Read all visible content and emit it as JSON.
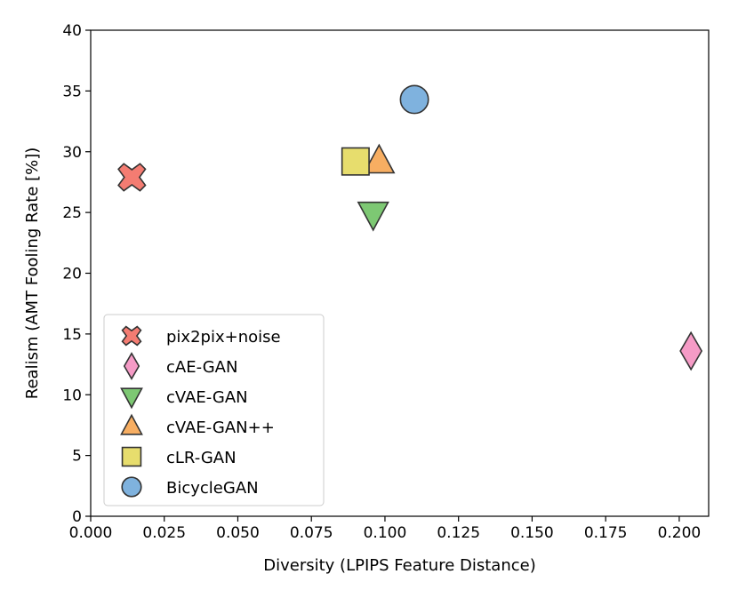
{
  "chart_data": {
    "type": "scatter",
    "title": "",
    "xlabel": "Diversity (LPIPS Feature Distance)",
    "ylabel": "Realism (AMT Fooling Rate [%])",
    "xlim": [
      0.0,
      0.21
    ],
    "ylim": [
      0,
      40
    ],
    "xticks": [
      0.0,
      0.025,
      0.05,
      0.075,
      0.1,
      0.125,
      0.15,
      0.175,
      0.2
    ],
    "xtick_labels": [
      "0.000",
      "0.025",
      "0.050",
      "0.075",
      "0.100",
      "0.125",
      "0.150",
      "0.175",
      "0.200"
    ],
    "yticks": [
      0,
      5,
      10,
      15,
      20,
      25,
      30,
      35,
      40
    ],
    "ytick_labels": [
      "0",
      "5",
      "10",
      "15",
      "20",
      "25",
      "30",
      "35",
      "40"
    ],
    "grid": false,
    "legend_position": "lower-left",
    "series": [
      {
        "name": "pix2pix+noise",
        "x": 0.014,
        "y": 27.9,
        "marker": "x",
        "color": "#f47c72"
      },
      {
        "name": "cAE-GAN",
        "x": 0.204,
        "y": 13.6,
        "marker": "diamond",
        "color": "#f59bc6"
      },
      {
        "name": "cVAE-GAN",
        "x": 0.096,
        "y": 24.9,
        "marker": "triangle-down",
        "color": "#7dc873"
      },
      {
        "name": "cVAE-GAN++",
        "x": 0.098,
        "y": 29.2,
        "marker": "triangle-up",
        "color": "#f7ae62"
      },
      {
        "name": "cLR-GAN",
        "x": 0.09,
        "y": 29.2,
        "marker": "square",
        "color": "#e7dd6d"
      },
      {
        "name": "BicycleGAN",
        "x": 0.11,
        "y": 34.3,
        "marker": "circle",
        "color": "#7fb2de"
      }
    ]
  }
}
